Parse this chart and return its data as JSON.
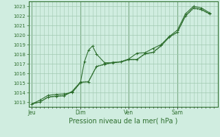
{
  "bg_color": "#d0ede0",
  "grid_color": "#a0c8b0",
  "line_color": "#2d6e2d",
  "ylabel_text": "Pression niveau de la mer( hPa )",
  "ylim": [
    1012.5,
    1023.5
  ],
  "yticks": [
    1013,
    1014,
    1015,
    1016,
    1017,
    1018,
    1019,
    1020,
    1021,
    1022,
    1023
  ],
  "day_labels": [
    "Jeu",
    "Dim",
    "Ven",
    "Sam"
  ],
  "day_positions": [
    0,
    3,
    6,
    9
  ],
  "line1_x": [
    0,
    0.5,
    1,
    1.5,
    2,
    2.5,
    3,
    3.25,
    3.5,
    3.75,
    4,
    4.5,
    5,
    5.5,
    6,
    6.5,
    7,
    7.5,
    8,
    8.5,
    9,
    9.5,
    10,
    10.5,
    11
  ],
  "line1_y": [
    1012.8,
    1013.2,
    1013.7,
    1013.8,
    1013.85,
    1014.0,
    1015.0,
    1017.2,
    1018.4,
    1018.85,
    1018.0,
    1017.1,
    1017.1,
    1017.2,
    1017.5,
    1018.1,
    1018.15,
    1018.6,
    1019.0,
    1019.85,
    1020.5,
    1022.2,
    1023.0,
    1022.8,
    1022.3
  ],
  "line2_x": [
    0,
    0.5,
    1,
    1.5,
    2,
    2.5,
    3,
    3.5,
    4,
    4.5,
    5,
    5.5,
    6,
    6.5,
    7,
    7.5,
    8,
    8.5,
    9,
    9.5,
    10,
    10.5,
    11
  ],
  "line2_y": [
    1012.8,
    1013.0,
    1013.5,
    1013.6,
    1013.65,
    1014.1,
    1015.05,
    1015.1,
    1016.7,
    1016.95,
    1017.15,
    1017.2,
    1017.45,
    1017.45,
    1018.05,
    1018.2,
    1018.9,
    1019.8,
    1020.3,
    1022.0,
    1022.85,
    1022.65,
    1022.2
  ],
  "line3_x": [
    0,
    0.5,
    1,
    1.5,
    2,
    2.5,
    3,
    3.5,
    4,
    4.5,
    5,
    5.5,
    6,
    6.5,
    7,
    7.5,
    8,
    8.5,
    9,
    9.5,
    10,
    10.5,
    11
  ],
  "line3_y": [
    1012.85,
    1013.0,
    1013.55,
    1013.65,
    1013.7,
    1014.15,
    1015.1,
    1015.15,
    1016.75,
    1016.9,
    1017.1,
    1017.15,
    1017.4,
    1017.42,
    1018.0,
    1018.15,
    1018.85,
    1019.75,
    1020.25,
    1021.95,
    1022.75,
    1022.6,
    1022.15
  ],
  "xlim": [
    -0.2,
    11.5
  ],
  "minor_xtick_step": 0.25
}
